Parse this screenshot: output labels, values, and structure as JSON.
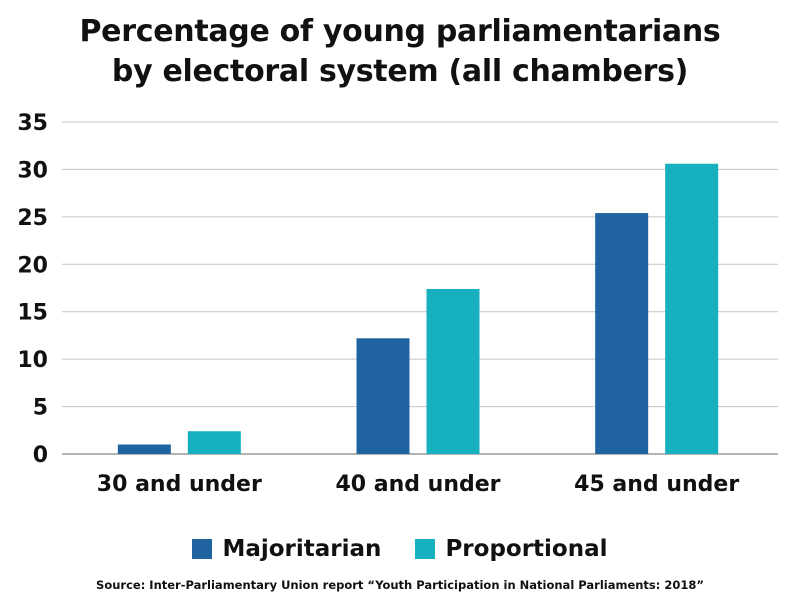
{
  "chart_data": {
    "type": "bar",
    "title_lines": [
      "Percentage of young parliamentarians",
      "by electoral system (all chambers)"
    ],
    "categories": [
      "30 and under",
      "40 and under",
      "45 and under"
    ],
    "series": [
      {
        "name": "Majoritarian",
        "color": "#1f64a0",
        "values": [
          1.0,
          12.2,
          25.4
        ]
      },
      {
        "name": "Proportional",
        "color": "#16b0bf",
        "values": [
          2.4,
          17.4,
          30.6
        ]
      }
    ],
    "yticks": [
      0,
      5,
      10,
      15,
      20,
      25,
      30,
      35
    ],
    "ylim": [
      0,
      35
    ],
    "grid": true,
    "legend_position": "bottom",
    "source": "Source: Inter-Parliamentary Union report “Youth Participation in National Parliaments: 2018”"
  }
}
